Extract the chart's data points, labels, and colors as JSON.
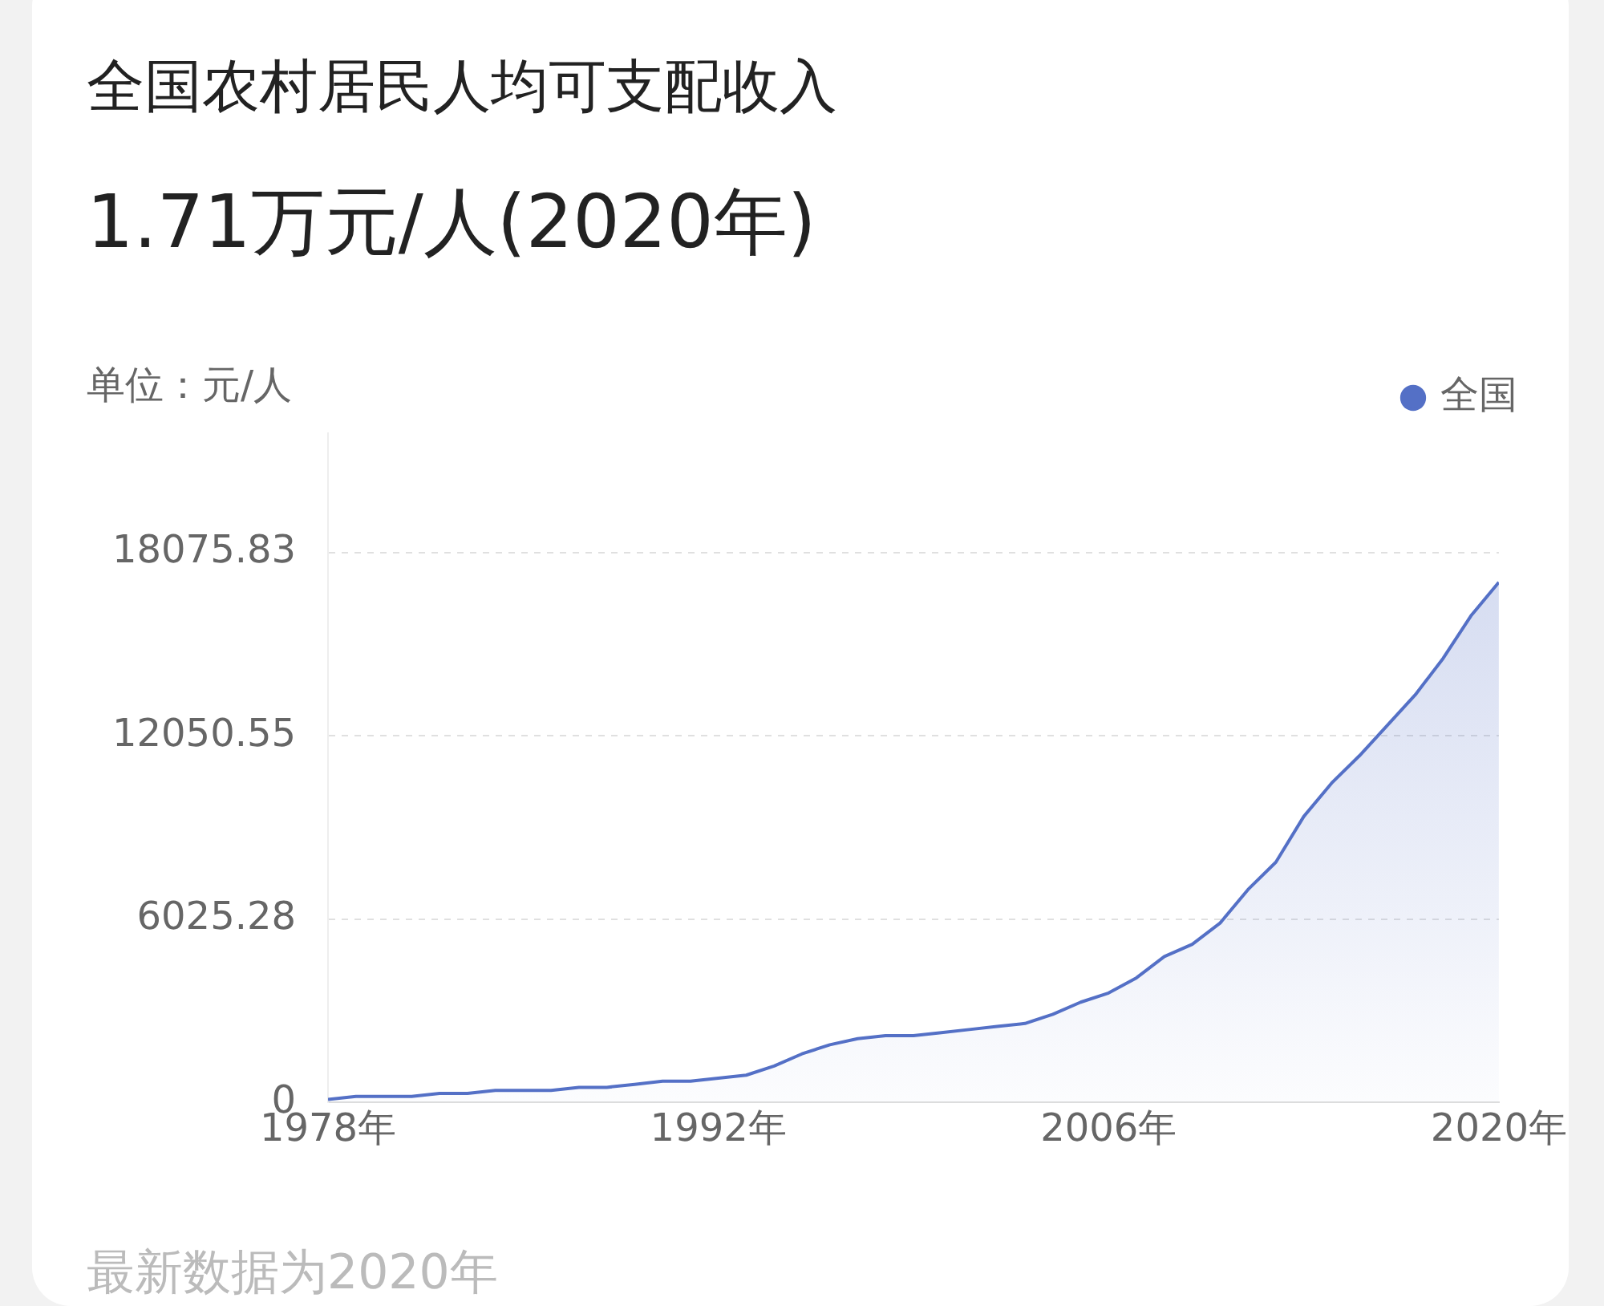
{
  "chart_data": {
    "type": "area",
    "title": "全国农村居民人均可支配收入",
    "subtitle": "1.71万元/人(2020年)",
    "ylabel": "单位：元/人",
    "annotations": [
      "最新数据为2020年"
    ],
    "x": [
      1978,
      1979,
      1980,
      1981,
      1982,
      1983,
      1984,
      1985,
      1986,
      1987,
      1988,
      1989,
      1990,
      1991,
      1992,
      1993,
      1994,
      1995,
      1996,
      1997,
      1998,
      1999,
      2000,
      2001,
      2002,
      2003,
      2004,
      2005,
      2006,
      2007,
      2008,
      2009,
      2010,
      2011,
      2012,
      2013,
      2014,
      2015,
      2016,
      2017,
      2018,
      2019,
      2020
    ],
    "series": [
      {
        "name": "全国",
        "color": "#5470c6",
        "values": [
          100,
          200,
          200,
          200,
          300,
          300,
          400,
          400,
          400,
          500,
          500,
          600,
          700,
          700,
          800,
          900,
          1200,
          1600,
          1900,
          2100,
          2200,
          2200,
          2300,
          2400,
          2500,
          2600,
          2900,
          3300,
          3600,
          4100,
          4800,
          5200,
          5900,
          7000,
          7900,
          9400,
          10500,
          11400,
          12400,
          13400,
          14600,
          16000,
          17100
        ]
      }
    ],
    "xlim": [
      1978,
      2020
    ],
    "xticks": [
      {
        "value": 1978,
        "label": "1978年"
      },
      {
        "value": 1992,
        "label": "1992年"
      },
      {
        "value": 2006,
        "label": "2006年"
      },
      {
        "value": 2020,
        "label": "2020年"
      }
    ],
    "ylim": [
      0,
      22000
    ],
    "yticks": [
      0,
      6025.28,
      12050.55,
      18075.83
    ],
    "grid": "y",
    "legend": "top right",
    "marker": "none",
    "line_style": "solid"
  }
}
